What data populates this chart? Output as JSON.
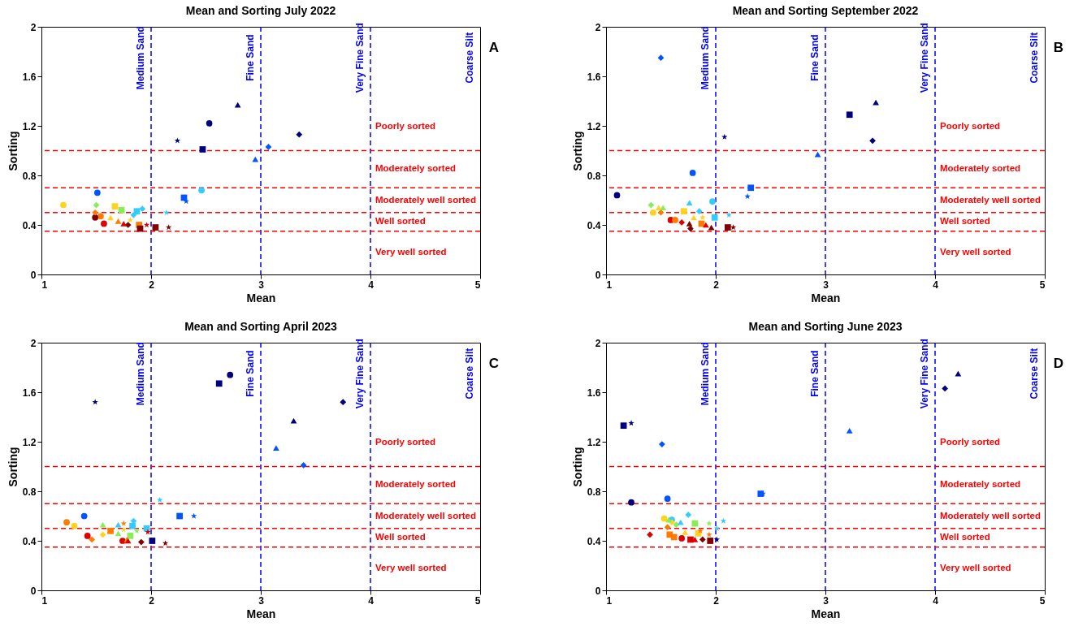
{
  "chart_data": [
    {
      "type": "scatter",
      "title": "Mean and Sorting July 2022",
      "xlabel": "Mean",
      "ylabel": "Sorting",
      "xlim": [
        1,
        5
      ],
      "ylim": [
        0,
        2
      ],
      "xticks": [
        1,
        2,
        3,
        4,
        5
      ],
      "yticks": [
        0,
        0.4,
        0.8,
        1.2,
        1.6,
        2
      ],
      "ref_lines": [
        {
          "axis": "x",
          "value": 2,
          "label": "Medium Sand",
          "color": "#0000ff",
          "line_style": "dashed"
        },
        {
          "axis": "x",
          "value": 3,
          "label": "Fine Sand",
          "color": "#0000ff",
          "line_style": "dashed"
        },
        {
          "axis": "x",
          "value": 4,
          "label": "Very Fine Sand",
          "color": "#0000ff",
          "line_style": "dashed"
        },
        {
          "axis": "y",
          "value": 1,
          "color": "#ff0000",
          "line_style": "dashed"
        },
        {
          "axis": "y",
          "value": 0.7,
          "color": "#ff0000",
          "line_style": "dashed"
        },
        {
          "axis": "y",
          "value": 0.5,
          "color": "#ff0000",
          "line_style": "dashed"
        },
        {
          "axis": "y",
          "value": 0.35,
          "color": "#ff0000",
          "line_style": "dashed"
        }
      ],
      "annotations": [
        "A",
        "Poorly sorted",
        "Moderately sorted",
        "Moderately well sorted",
        "Well sorted",
        "Very well sorted",
        "Coarse Silt"
      ],
      "series": [
        {
          "marker": "circle",
          "x": [
            1.2,
            1.51,
            1.54,
            1.49,
            1.57,
            2.53,
            2.46
          ],
          "values": [
            0.56,
            0.66,
            0.47,
            0.46,
            0.41,
            1.22,
            0.68
          ],
          "colors": [
            "#ffd21f",
            "#0055ff",
            "#ff7a00",
            "#800000",
            "#dd0000",
            "#00007f",
            "#33ccff"
          ]
        },
        {
          "marker": "square",
          "x": [
            2.47,
            2.3,
            1.67,
            1.73,
            1.87,
            1.89,
            1.9,
            2.04
          ],
          "values": [
            1.01,
            0.62,
            0.55,
            0.52,
            0.51,
            0.4,
            0.37,
            0.38
          ],
          "colors": [
            "#00007f",
            "#0055ff",
            "#ffd21f",
            "#88ee55",
            "#33ccff",
            "#ff7a00",
            "#800000",
            "#800000"
          ]
        },
        {
          "marker": "diamond",
          "x": [
            3.35,
            3.07,
            1.5,
            1.92,
            1.84,
            1.49,
            1.79
          ],
          "values": [
            1.13,
            1.03,
            0.56,
            0.53,
            0.48,
            0.5,
            0.4
          ],
          "colors": [
            "#00007f",
            "#0055ff",
            "#88ee55",
            "#33ccff",
            "#33ccff",
            "#ff7a00",
            "#800000"
          ]
        },
        {
          "marker": "triangle",
          "x": [
            2.79,
            2.95,
            1.63,
            1.7,
            1.75
          ],
          "values": [
            1.37,
            0.93,
            0.46,
            0.43,
            0.41
          ],
          "colors": [
            "#00007f",
            "#0055ff",
            "#ffd21f",
            "#ff7a00",
            "#dd0000"
          ]
        },
        {
          "marker": "star",
          "x": [
            2.24,
            2.32,
            2.14,
            1.81,
            1.96,
            2.16
          ],
          "values": [
            1.08,
            0.59,
            0.5,
            0.44,
            0.4,
            0.38
          ],
          "colors": [
            "#00007f",
            "#0055ff",
            "#33ccff",
            "#ffd21f",
            "#dd0000",
            "#800000"
          ]
        }
      ]
    },
    {
      "type": "scatter",
      "title": "Mean and Sorting September 2022",
      "xlabel": "Mean",
      "ylabel": "Sorting",
      "xlim": [
        1,
        5
      ],
      "ylim": [
        0,
        2
      ],
      "xticks": [
        1,
        2,
        3,
        4,
        5
      ],
      "yticks": [
        0,
        0.4,
        0.8,
        1.2,
        1.6,
        2
      ],
      "ref_lines": [
        {
          "axis": "x",
          "value": 2,
          "label": "Medium Sand",
          "color": "#0000ff",
          "line_style": "dashed"
        },
        {
          "axis": "x",
          "value": 3,
          "label": "Fine Sand",
          "color": "#0000ff",
          "line_style": "dashed"
        },
        {
          "axis": "x",
          "value": 4,
          "label": "Very Fine Sand",
          "color": "#0000ff",
          "line_style": "dashed"
        },
        {
          "axis": "y",
          "value": 1,
          "color": "#ff0000",
          "line_style": "dashed"
        },
        {
          "axis": "y",
          "value": 0.7,
          "color": "#ff0000",
          "line_style": "dashed"
        },
        {
          "axis": "y",
          "value": 0.5,
          "color": "#ff0000",
          "line_style": "dashed"
        },
        {
          "axis": "y",
          "value": 0.35,
          "color": "#ff0000",
          "line_style": "dashed"
        }
      ],
      "annotations": [
        "B",
        "Poorly sorted",
        "Moderately sorted",
        "Moderately well sorted",
        "Well sorted",
        "Very well sorted",
        "Coarse Silt"
      ],
      "series": [
        {
          "marker": "circle",
          "x": [
            1.1,
            1.79,
            1.97,
            1.43,
            1.59,
            1.63
          ],
          "values": [
            0.64,
            0.82,
            0.59,
            0.5,
            0.44,
            0.44
          ],
          "colors": [
            "#00007f",
            "#0055ff",
            "#33ccff",
            "#ffd21f",
            "#dd0000",
            "#ff7a00"
          ]
        },
        {
          "marker": "square",
          "x": [
            3.22,
            2.32,
            1.99,
            1.71,
            1.87,
            2.11
          ],
          "values": [
            1.29,
            0.7,
            0.46,
            0.51,
            0.41,
            0.38
          ],
          "colors": [
            "#00007f",
            "#0055ff",
            "#33ccff",
            "#ffd21f",
            "#ff7a00",
            "#800000"
          ]
        },
        {
          "marker": "diamond",
          "x": [
            3.43,
            1.5,
            1.85,
            1.41,
            1.5,
            1.69,
            1.77
          ],
          "values": [
            1.08,
            1.75,
            0.51,
            0.56,
            0.5,
            0.42,
            0.37
          ],
          "colors": [
            "#00007f",
            "#0055ff",
            "#33ccff",
            "#88ee55",
            "#ff7a00",
            "#dd0000",
            "#800000"
          ]
        },
        {
          "marker": "triangle",
          "x": [
            3.46,
            2.93,
            1.76,
            1.48,
            1.52,
            1.8,
            1.76,
            1.91,
            1.96
          ],
          "values": [
            1.39,
            0.97,
            0.58,
            0.54,
            0.54,
            0.46,
            0.41,
            0.4,
            0.38
          ],
          "colors": [
            "#00007f",
            "#0055ff",
            "#33ccff",
            "#ffd21f",
            "#88ee55",
            "#ffd21f",
            "#800000",
            "#dd0000",
            "#800000"
          ]
        },
        {
          "marker": "star",
          "x": [
            2.08,
            2.29,
            2.12,
            1.88,
            2.16
          ],
          "values": [
            1.11,
            0.63,
            0.48,
            0.46,
            0.38
          ],
          "colors": [
            "#00007f",
            "#0055ff",
            "#33ccff",
            "#ffd21f",
            "#800000"
          ]
        }
      ]
    },
    {
      "type": "scatter",
      "title": "Mean and Sorting April 2023",
      "xlabel": "Mean",
      "ylabel": "Sorting",
      "xlim": [
        1,
        5
      ],
      "ylim": [
        0,
        2
      ],
      "xticks": [
        1,
        2,
        3,
        4,
        5
      ],
      "yticks": [
        0,
        0.4,
        0.8,
        1.2,
        1.6,
        2
      ],
      "ref_lines": [
        {
          "axis": "x",
          "value": 2,
          "label": "Medium Sand",
          "color": "#0000ff",
          "line_style": "dashed"
        },
        {
          "axis": "x",
          "value": 3,
          "label": "Fine Sand",
          "color": "#0000ff",
          "line_style": "dashed"
        },
        {
          "axis": "x",
          "value": 4,
          "label": "Very Fine Sand",
          "color": "#0000ff",
          "line_style": "dashed"
        },
        {
          "axis": "y",
          "value": 1,
          "color": "#ff0000",
          "line_style": "dashed"
        },
        {
          "axis": "y",
          "value": 0.7,
          "color": "#ff0000",
          "line_style": "dashed"
        },
        {
          "axis": "y",
          "value": 0.5,
          "color": "#ff0000",
          "line_style": "dashed"
        },
        {
          "axis": "y",
          "value": 0.35,
          "color": "#ff0000",
          "line_style": "dashed"
        }
      ],
      "annotations": [
        "C",
        "Poorly sorted",
        "Moderately sorted",
        "Moderately well sorted",
        "Well sorted",
        "Very well sorted",
        "Coarse Silt"
      ],
      "series": [
        {
          "marker": "circle",
          "x": [
            2.72,
            1.39,
            1.23,
            1.3,
            1.42,
            1.74
          ],
          "values": [
            1.74,
            0.6,
            0.55,
            0.52,
            0.44,
            0.4
          ],
          "colors": [
            "#00007f",
            "#0055ff",
            "#ff7a00",
            "#ffd21f",
            "#dd0000",
            "#dd0000"
          ]
        },
        {
          "marker": "square",
          "x": [
            2.62,
            2.26,
            1.83,
            1.63,
            1.96,
            1.81,
            2.01
          ],
          "values": [
            1.67,
            0.6,
            0.52,
            0.48,
            0.5,
            0.44,
            0.4
          ],
          "colors": [
            "#00007f",
            "#0055ff",
            "#33ccff",
            "#ff7a00",
            "#33ccff",
            "#88ee55",
            "#00007f"
          ]
        },
        {
          "marker": "diamond",
          "x": [
            3.75,
            3.39,
            1.84,
            1.56,
            1.46,
            1.91
          ],
          "values": [
            1.52,
            1.01,
            0.56,
            0.45,
            0.41,
            0.39
          ],
          "colors": [
            "#00007f",
            "#0055ff",
            "#33ccff",
            "#ffd21f",
            "#ff7a00",
            "#800000"
          ]
        },
        {
          "marker": "triangle",
          "x": [
            3.3,
            3.14,
            1.56,
            1.7,
            1.7,
            1.78,
            1.79
          ],
          "values": [
            1.37,
            1.15,
            0.53,
            0.53,
            0.46,
            0.41,
            0.4
          ],
          "colors": [
            "#00007f",
            "#0055ff",
            "#88ee55",
            "#33ccff",
            "#88ee55",
            "#ff7a00",
            "#dd0000"
          ]
        },
        {
          "marker": "star",
          "x": [
            1.49,
            2.08,
            2.39,
            1.75,
            1.75,
            1.87,
            1.97,
            2.13
          ],
          "values": [
            1.52,
            0.73,
            0.6,
            0.54,
            0.49,
            0.48,
            0.47,
            0.38
          ],
          "colors": [
            "#00007f",
            "#33ccff",
            "#0055ff",
            "#ff7a00",
            "#ffd21f",
            "#88ee55",
            "#dd0000",
            "#800000"
          ]
        }
      ]
    },
    {
      "type": "scatter",
      "title": "Mean and Sorting June 2023",
      "xlabel": "Mean",
      "ylabel": "Sorting",
      "xlim": [
        1,
        5
      ],
      "ylim": [
        0,
        2
      ],
      "xticks": [
        1,
        2,
        3,
        4,
        5
      ],
      "yticks": [
        0,
        0.4,
        0.8,
        1.2,
        1.6,
        2
      ],
      "ref_lines": [
        {
          "axis": "x",
          "value": 2,
          "label": "Medium Sand",
          "color": "#0000ff",
          "line_style": "dashed"
        },
        {
          "axis": "x",
          "value": 3,
          "label": "Fine Sand",
          "color": "#0000ff",
          "line_style": "dashed"
        },
        {
          "axis": "x",
          "value": 4,
          "label": "Very Fine Sand",
          "color": "#0000ff",
          "line_style": "dashed"
        },
        {
          "axis": "y",
          "value": 1,
          "color": "#ff0000",
          "line_style": "dashed"
        },
        {
          "axis": "y",
          "value": 0.7,
          "color": "#ff0000",
          "line_style": "dashed"
        },
        {
          "axis": "y",
          "value": 0.5,
          "color": "#ff0000",
          "line_style": "dashed"
        },
        {
          "axis": "y",
          "value": 0.35,
          "color": "#ff0000",
          "line_style": "dashed"
        }
      ],
      "annotations": [
        "D",
        "Poorly sorted",
        "Moderately sorted",
        "Moderately well sorted",
        "Well sorted",
        "Very well sorted",
        "Coarse Silt"
      ],
      "series": [
        {
          "marker": "circle",
          "x": [
            1.23,
            1.56,
            1.53,
            1.6,
            1.69
          ],
          "values": [
            0.71,
            0.74,
            0.58,
            0.57,
            0.42
          ],
          "colors": [
            "#00007f",
            "#0055ff",
            "#ffd21f",
            "#33ccff",
            "#dd0000"
          ]
        },
        {
          "marker": "square",
          "x": [
            1.16,
            2.41,
            1.81,
            1.58,
            1.62,
            1.84,
            1.77,
            1.95
          ],
          "values": [
            1.33,
            0.78,
            0.54,
            0.45,
            0.43,
            0.46,
            0.41,
            0.4
          ],
          "colors": [
            "#00007f",
            "#0055ff",
            "#88ee55",
            "#ff7a00",
            "#ff7a00",
            "#ffd21f",
            "#dd0000",
            "#800000"
          ]
        },
        {
          "marker": "diamond",
          "x": [
            4.09,
            1.51,
            1.75,
            1.6,
            1.64,
            1.56,
            1.4,
            1.88
          ],
          "values": [
            1.63,
            1.18,
            0.61,
            0.55,
            0.53,
            0.51,
            0.45,
            0.41
          ],
          "colors": [
            "#00007f",
            "#0055ff",
            "#33ccff",
            "#ffd21f",
            "#88ee55",
            "#ff7a00",
            "#dd0000",
            "#800000"
          ]
        },
        {
          "marker": "triangle",
          "x": [
            4.21,
            3.22,
            1.57,
            1.68,
            1.72,
            1.81
          ],
          "values": [
            1.75,
            1.29,
            0.57,
            0.55,
            0.47,
            0.41
          ],
          "colors": [
            "#00007f",
            "#0055ff",
            "#88ee55",
            "#33ccff",
            "#ffd21f",
            "#dd0000"
          ]
        },
        {
          "marker": "star",
          "x": [
            1.23,
            2.43,
            1.94,
            2.07,
            2.01,
            1.86,
            1.94,
            2.01
          ],
          "values": [
            1.35,
            0.78,
            0.54,
            0.56,
            0.5,
            0.48,
            0.45,
            0.41
          ],
          "colors": [
            "#00007f",
            "#0055ff",
            "#88ee55",
            "#33ccff",
            "#33ccff",
            "#ff7a00",
            "#ff7a00",
            "#00007f"
          ]
        }
      ]
    }
  ]
}
